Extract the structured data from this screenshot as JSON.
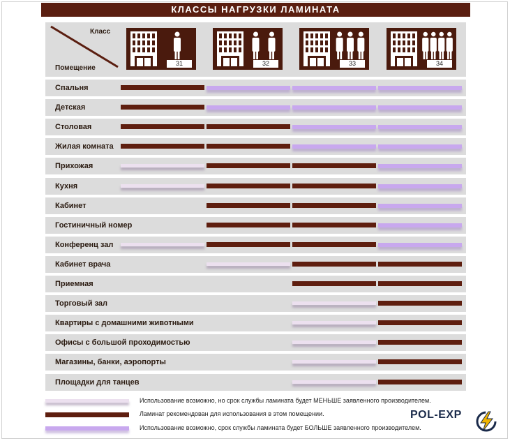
{
  "title": "КЛАССЫ НАГРУЗКИ ЛАМИНАТА",
  "header": {
    "class_label": "Класс",
    "room_label": "Помещение"
  },
  "classes": [
    {
      "label": "31",
      "people": 1
    },
    {
      "label": "32",
      "people": 2
    },
    {
      "label": "33",
      "people": 3
    },
    {
      "label": "34",
      "people": 4
    }
  ],
  "rows": [
    {
      "name": "Спальня",
      "levels": [
        "brown",
        "violet",
        "violet",
        "violet"
      ]
    },
    {
      "name": "Детская",
      "levels": [
        "brown",
        "violet",
        "violet",
        "violet"
      ]
    },
    {
      "name": "Столовая",
      "levels": [
        "brown",
        "brown",
        "violet",
        "violet"
      ]
    },
    {
      "name": "Жилая комната",
      "levels": [
        "brown",
        "brown",
        "violet",
        "violet"
      ]
    },
    {
      "name": "Прихожая",
      "levels": [
        "pink",
        "brown",
        "brown",
        "violet"
      ]
    },
    {
      "name": "Кухня",
      "levels": [
        "pink",
        "brown",
        "brown",
        "violet"
      ]
    },
    {
      "name": "Кабинет",
      "levels": [
        "none",
        "brown",
        "brown",
        "violet"
      ]
    },
    {
      "name": "Гостиничный номер",
      "levels": [
        "none",
        "brown",
        "brown",
        "violet"
      ]
    },
    {
      "name": "Конференц зал",
      "levels": [
        "pink",
        "brown",
        "brown",
        "violet"
      ]
    },
    {
      "name": "Кабинет врача",
      "levels": [
        "none",
        "pink",
        "brown",
        "brown"
      ]
    },
    {
      "name": "Приемная",
      "levels": [
        "none",
        "none",
        "brown",
        "brown"
      ]
    },
    {
      "name": "Торговый зал",
      "levels": [
        "none",
        "none",
        "pink",
        "brown"
      ]
    },
    {
      "name": "Квартиры с домашними животными",
      "levels": [
        "none",
        "none",
        "pink",
        "brown"
      ]
    },
    {
      "name": "Офисы с большой проходимостью",
      "levels": [
        "none",
        "none",
        "pink",
        "brown"
      ]
    },
    {
      "name": "Магазины,  банки, аэропорты",
      "levels": [
        "none",
        "none",
        "pink",
        "brown"
      ]
    },
    {
      "name": "Площадки для танцев",
      "levels": [
        "none",
        "none",
        "pink",
        "brown"
      ]
    }
  ],
  "legend": [
    {
      "type": "pink",
      "text": "Использование возможно, но срок службы ламината будет МЕНЬШЕ заявленного производителем."
    },
    {
      "type": "brown",
      "text": "Ламинат рекомендован для использования в этом помещении."
    },
    {
      "type": "violet",
      "text": "Использование возможно, срок службы ламината будет БОЛЬШЕ заявленного производителем."
    }
  ],
  "logo": "POL-EXP",
  "colors": {
    "brown": "#5e1e0f",
    "pink": "#ece0ef",
    "violet": "#c8a8ee",
    "row_bg": "#dcdcdc",
    "title_bg": "#5a1e10"
  }
}
